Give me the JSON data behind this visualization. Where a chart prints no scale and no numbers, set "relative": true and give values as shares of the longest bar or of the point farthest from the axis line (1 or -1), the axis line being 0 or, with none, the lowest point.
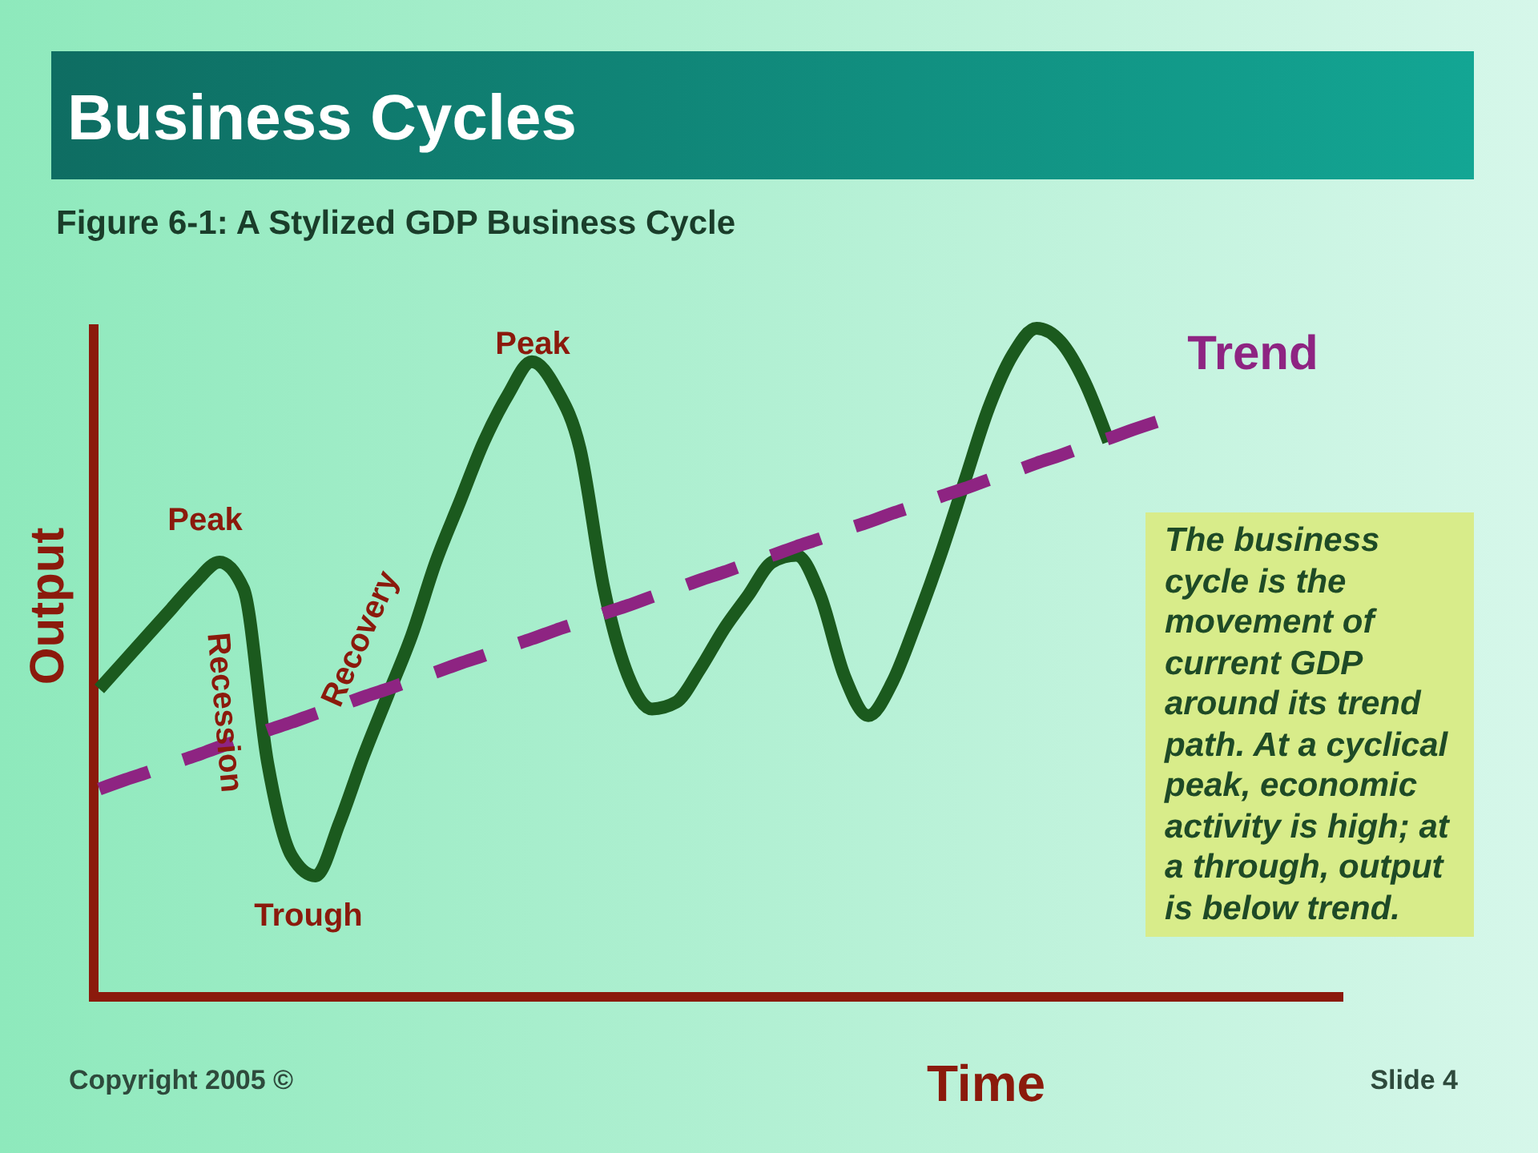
{
  "chart_data": {
    "type": "line",
    "title": "Business Cycles",
    "subtitle": "Figure 6-1: A Stylized GDP Business Cycle",
    "xlabel": "Time",
    "ylabel": "Output",
    "relative": true,
    "categories": [
      null,
      null,
      null,
      null,
      null,
      null,
      null,
      null,
      null,
      null,
      null,
      null,
      null,
      null,
      null,
      null,
      null,
      null,
      null,
      null,
      null,
      null,
      null,
      null,
      null,
      null,
      null,
      null,
      null,
      null,
      null,
      null,
      null,
      null,
      null,
      null,
      null,
      null,
      null,
      null,
      null,
      null,
      null,
      null,
      null
    ],
    "series": [
      {
        "color": "#1b5a1e",
        "line_style": "solid",
        "values": [
          0.46,
          0.5,
          0.54,
          0.58,
          0.62,
          0.65,
          0.61,
          0.35,
          0.21,
          0.18,
          0.26,
          0.36,
          0.45,
          0.54,
          0.65,
          0.74,
          0.83,
          0.9,
          0.95,
          0.91,
          0.82,
          0.61,
          0.48,
          0.43,
          0.44,
          0.49,
          0.55,
          0.6,
          0.65,
          0.66,
          0.6,
          0.48,
          0.42,
          0.47,
          0.56,
          0.66,
          0.77,
          0.88,
          0.96,
          1,
          0.98,
          0.92,
          0.83,
          null,
          null
        ]
      },
      {
        "name": "Trend",
        "color": "#8e2482",
        "line_style": "dashed",
        "values": [
          0.31,
          0.323,
          0.335,
          0.348,
          0.36,
          0.373,
          0.385,
          0.398,
          0.41,
          0.423,
          0.435,
          0.448,
          0.46,
          0.473,
          0.485,
          0.498,
          0.51,
          0.523,
          0.535,
          0.548,
          0.56,
          0.573,
          0.585,
          0.598,
          0.61,
          0.623,
          0.635,
          0.648,
          0.66,
          0.673,
          0.685,
          0.698,
          0.71,
          0.723,
          0.735,
          0.748,
          0.76,
          0.773,
          0.785,
          0.798,
          0.81,
          0.823,
          0.835,
          0.848,
          0.86
        ]
      }
    ],
    "annotations": [
      "Peak",
      "Recession",
      "Recovery",
      "Trough",
      "Peak",
      "The business cycle is the movement of current GDP around its trend path. At a cyclical peak, economic activity is high; at a through, output is below trend.",
      "Copyright 2005 ©",
      "Slide 4"
    ]
  }
}
